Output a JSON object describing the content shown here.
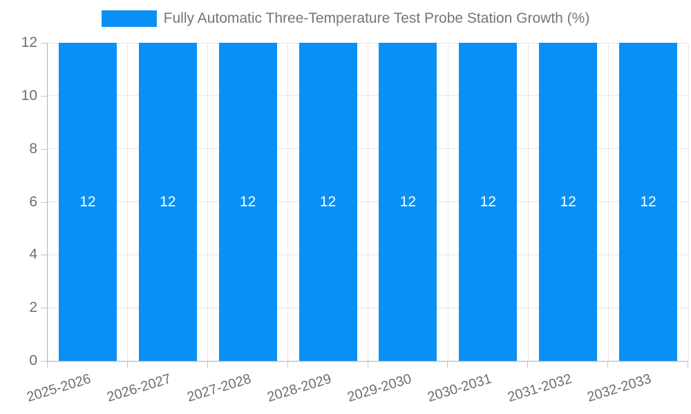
{
  "legend": {
    "label": "Fully Automatic Three-Temperature Test Probe Station Growth (%)"
  },
  "chart_data": {
    "type": "bar",
    "title": "Fully Automatic Three-Temperature Test Probe Station Growth (%)",
    "categories": [
      "2025-2026",
      "2026-2027",
      "2027-2028",
      "2028-2029",
      "2029-2030",
      "2030-2031",
      "2031-2032",
      "2032-2033"
    ],
    "values": [
      12,
      12,
      12,
      12,
      12,
      12,
      12,
      12
    ],
    "value_labels": [
      "12",
      "12",
      "12",
      "12",
      "12",
      "12",
      "12",
      "12"
    ],
    "xlabel": "",
    "ylabel": "",
    "ylim": [
      0,
      12
    ],
    "yticks": [
      0,
      2,
      4,
      6,
      8,
      10,
      12
    ],
    "grid": true,
    "legend_position": "top",
    "value_label_position": "center",
    "colors": {
      "bar": "#0a90f5",
      "grid": "#e6e6e6",
      "axis": "#b0b0b0",
      "tick": "#c6c6c6",
      "text": "#6e6e6e",
      "legend_text": "#757575",
      "value_label": "#ffffff",
      "background": "#ffffff"
    }
  }
}
